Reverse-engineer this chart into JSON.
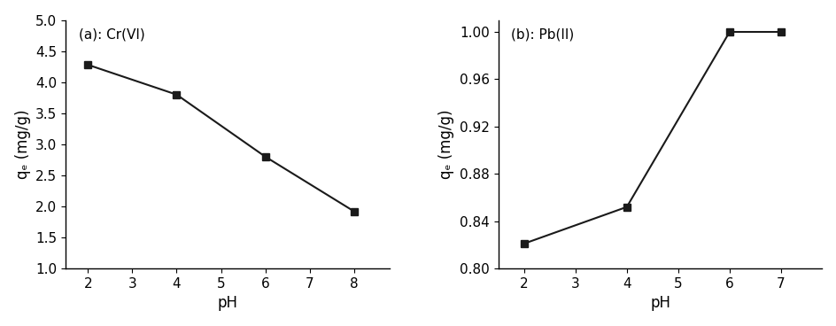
{
  "plot_a": {
    "label": "(a): Cr(VI)",
    "x": [
      2,
      4,
      6,
      8
    ],
    "y": [
      4.28,
      3.8,
      2.8,
      1.92
    ],
    "xlabel": "pH",
    "ylabel": "qₑ (mg/g)",
    "xlim": [
      1.5,
      8.8
    ],
    "ylim": [
      1.0,
      5.0
    ],
    "xticks": [
      2,
      3,
      4,
      5,
      6,
      7,
      8
    ],
    "yticks": [
      1.0,
      1.5,
      2.0,
      2.5,
      3.0,
      3.5,
      4.0,
      4.5,
      5.0
    ]
  },
  "plot_b": {
    "label": "(b): Pb(II)",
    "x": [
      2,
      4,
      6,
      7
    ],
    "y": [
      0.821,
      0.852,
      1.0,
      1.0
    ],
    "xlabel": "pH",
    "ylabel": "qₑ (mg/g)",
    "xlim": [
      1.5,
      7.8
    ],
    "ylim": [
      0.8,
      1.01
    ],
    "xticks": [
      2,
      3,
      4,
      5,
      6,
      7
    ],
    "yticks": [
      0.8,
      0.84,
      0.88,
      0.92,
      0.96,
      1.0
    ]
  },
  "line_color": "#1a1a1a",
  "marker": "s",
  "marker_size": 6,
  "marker_color": "#1a1a1a",
  "line_width": 1.5,
  "font_size_label": 12,
  "font_size_tick": 11,
  "font_size_annot": 11
}
